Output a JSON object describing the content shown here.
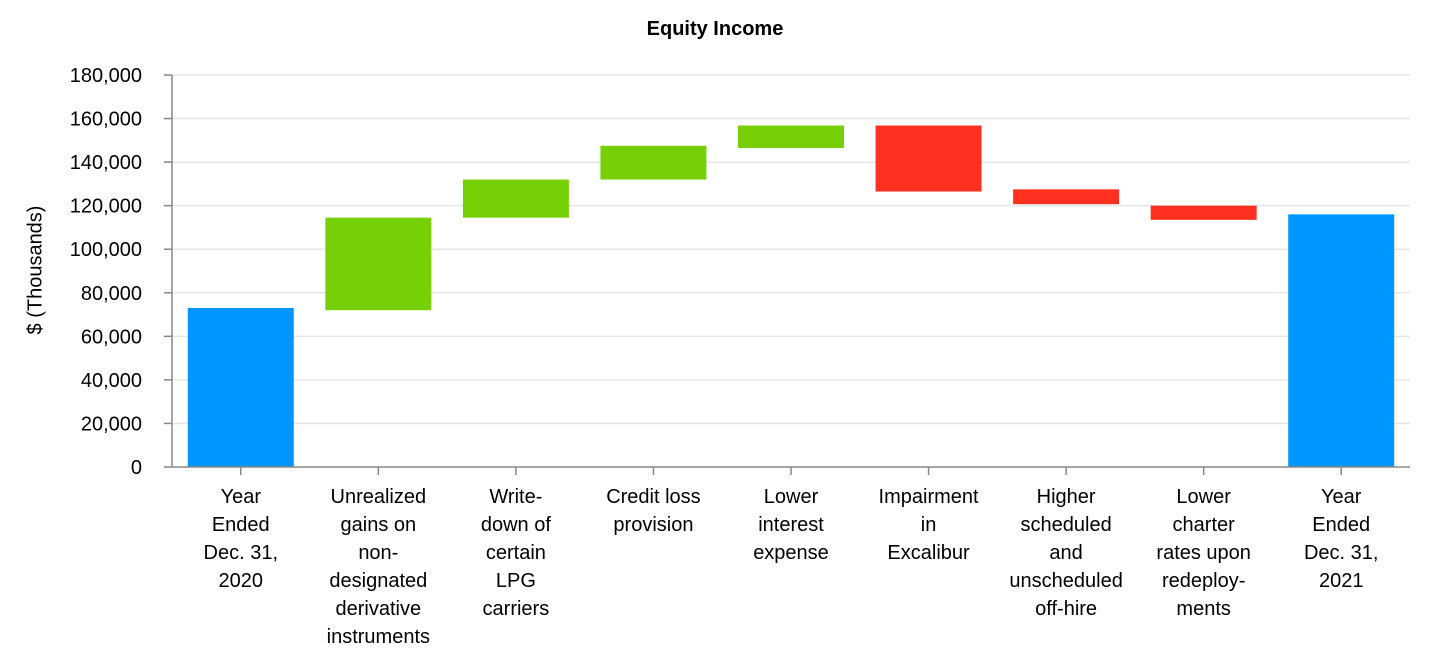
{
  "chart_data": {
    "type": "bar",
    "subtype": "waterfall",
    "title": "Equity Income",
    "xlabel": "",
    "ylabel": "$ (Thousands)",
    "ylim": [
      0,
      180000
    ],
    "yticks": [
      "0",
      "20,000",
      "40,000",
      "60,000",
      "80,000",
      "100,000",
      "120,000",
      "140,000",
      "160,000",
      "180,000"
    ],
    "grid": true,
    "colors": {
      "total": "#0096FF",
      "increase": "#77CF06",
      "decrease": "#FF3020"
    },
    "categories": [
      [
        "Year",
        "Ended",
        "Dec. 31,",
        "2020"
      ],
      [
        "Unrealized",
        "gains on",
        "non-",
        "designated",
        "derivative",
        "instruments"
      ],
      [
        "Write-",
        "down of",
        "certain",
        "LPG",
        "carriers"
      ],
      [
        "Credit loss",
        "provision"
      ],
      [
        "Lower",
        "interest",
        "expense"
      ],
      [
        "Impairment",
        "in",
        "Excalibur"
      ],
      [
        "Higher",
        "scheduled",
        "and",
        "unscheduled",
        "off-hire"
      ],
      [
        "Lower",
        "charter",
        "rates upon",
        "redeploy-",
        "ments"
      ],
      [
        "Year",
        "Ended",
        "Dec. 31,",
        "2021"
      ]
    ],
    "bars": [
      {
        "kind": "total",
        "start": 0,
        "end": 73000
      },
      {
        "kind": "increase",
        "start": 72000,
        "end": 114500
      },
      {
        "kind": "increase",
        "start": 114500,
        "end": 132000
      },
      {
        "kind": "increase",
        "start": 132000,
        "end": 147500
      },
      {
        "kind": "increase",
        "start": 146500,
        "end": 156800
      },
      {
        "kind": "decrease",
        "start": 156800,
        "end": 126500
      },
      {
        "kind": "decrease",
        "start": 127500,
        "end": 120700
      },
      {
        "kind": "decrease",
        "start": 120000,
        "end": 113500
      },
      {
        "kind": "total",
        "start": 0,
        "end": 116000
      }
    ]
  }
}
